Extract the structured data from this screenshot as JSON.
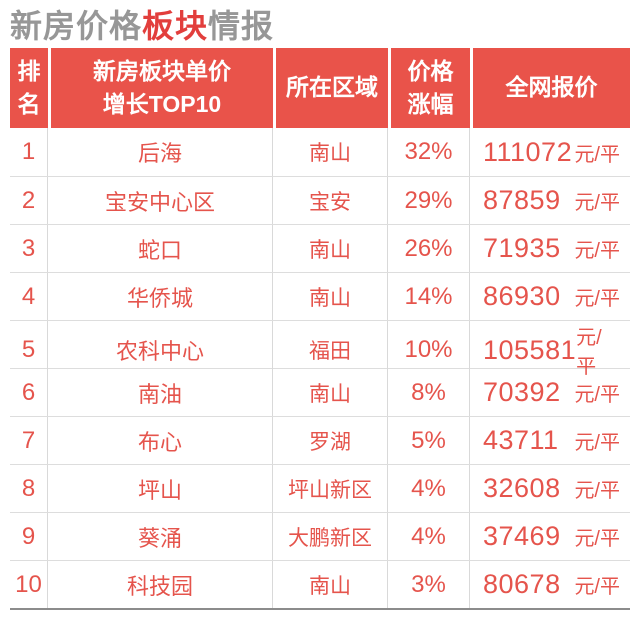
{
  "title": {
    "segment_gray_1": "新房价格",
    "segment_red": "板块",
    "segment_gray_2": "情报"
  },
  "table": {
    "columns": [
      {
        "key": "rank",
        "label": "排\n名"
      },
      {
        "key": "block",
        "label": "新房板块单价\n增长TOP10"
      },
      {
        "key": "district",
        "label": "所在区域"
      },
      {
        "key": "change",
        "label": "价格\n涨幅"
      },
      {
        "key": "price",
        "label": "全网报价"
      }
    ],
    "rows": [
      {
        "rank": "1",
        "block": "后海",
        "district": "南山",
        "change": "32%",
        "price": "111072",
        "unit": "元/平"
      },
      {
        "rank": "2",
        "block": "宝安中心区",
        "district": "宝安",
        "change": "29%",
        "price": "87859",
        "unit": "元/平"
      },
      {
        "rank": "3",
        "block": "蛇口",
        "district": "南山",
        "change": "26%",
        "price": "71935",
        "unit": "元/平"
      },
      {
        "rank": "4",
        "block": "华侨城",
        "district": "南山",
        "change": "14%",
        "price": "86930",
        "unit": "元/平"
      },
      {
        "rank": "5",
        "block": "农科中心",
        "district": "福田",
        "change": "10%",
        "price": "105581",
        "unit": "元/平"
      },
      {
        "rank": "6",
        "block": "南油",
        "district": "南山",
        "change": "8%",
        "price": "70392",
        "unit": "元/平"
      },
      {
        "rank": "7",
        "block": "布心",
        "district": "罗湖",
        "change": "5%",
        "price": "43711",
        "unit": "元/平"
      },
      {
        "rank": "8",
        "block": "坪山",
        "district": "坪山新区",
        "change": "4%",
        "price": "32608",
        "unit": "元/平"
      },
      {
        "rank": "9",
        "block": "葵涌",
        "district": "大鹏新区",
        "change": "4%",
        "price": "37469",
        "unit": "元/平"
      },
      {
        "rank": "10",
        "block": "科技园",
        "district": "南山",
        "change": "3%",
        "price": "80678",
        "unit": "元/平"
      }
    ]
  },
  "chart_data": {
    "type": "table",
    "title": "新房价格板块情报",
    "columns": [
      "排名",
      "新房板块单价增长TOP10",
      "所在区域",
      "价格涨幅",
      "全网报价"
    ],
    "rows": [
      [
        1,
        "后海",
        "南山",
        "32%",
        111072,
        "元/平"
      ],
      [
        2,
        "宝安中心区",
        "宝安",
        "29%",
        87859,
        "元/平"
      ],
      [
        3,
        "蛇口",
        "南山",
        "26%",
        71935,
        "元/平"
      ],
      [
        4,
        "华侨城",
        "南山",
        "14%",
        86930,
        "元/平"
      ],
      [
        5,
        "农科中心",
        "福田",
        "10%",
        105581,
        "元/平"
      ],
      [
        6,
        "南油",
        "南山",
        "8%",
        70392,
        "元/平"
      ],
      [
        7,
        "布心",
        "罗湖",
        "5%",
        43711,
        "元/平"
      ],
      [
        8,
        "坪山",
        "坪山新区",
        "4%",
        32608,
        "元/平"
      ],
      [
        9,
        "葵涌",
        "大鹏新区",
        "4%",
        37469,
        "元/平"
      ],
      [
        10,
        "科技园",
        "南山",
        "3%",
        80678,
        "元/平"
      ]
    ]
  },
  "colors": {
    "header_red": "#E9534A",
    "text_red": "#E5544C",
    "title_red": "#E23E3C",
    "title_gray": "#979797",
    "row_divider": "#DDDDDD",
    "column_divider": "#D9D9D9",
    "bottom_border": "#8C8C8C"
  }
}
